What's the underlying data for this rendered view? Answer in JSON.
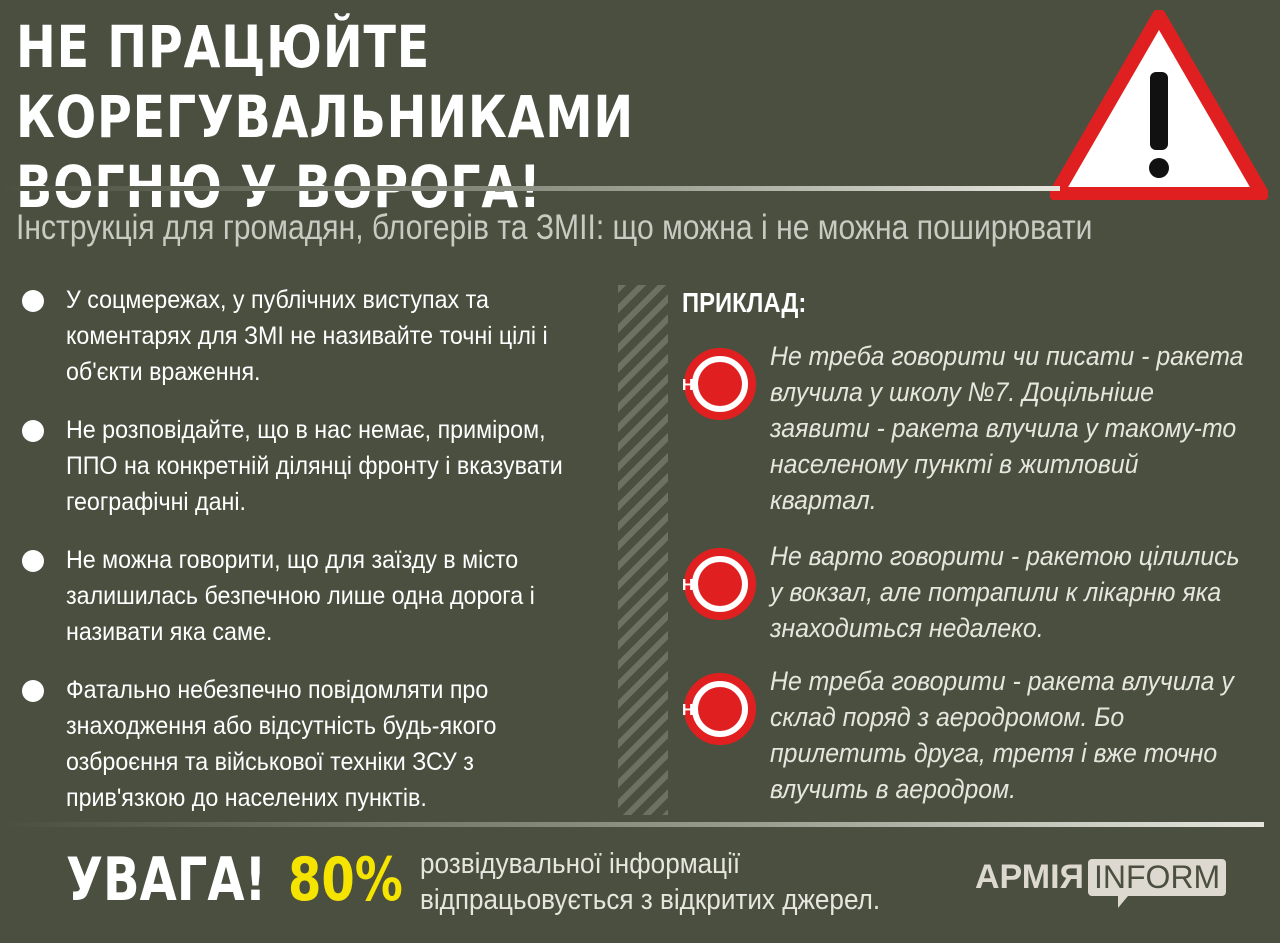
{
  "header": {
    "title_line1": "НЕ ПРАЦЮЙТЕ КОРЕГУВАЛЬНИКАМИ",
    "title_line2": "ВОГНЮ У ВОРОГА!",
    "subtitle": "Інструкція для громадян, блогерів та ЗМІІ: що можна і не можна поширювати",
    "warning_icon": "warning-triangle-icon"
  },
  "bullets": [
    "У соцмережах, у публічних виступах та коментарях для ЗМІ не називайте точні цілі і об'єкти враження.",
    "Не розповідайте, що в нас немає, приміром, ППО на конкретній ділянці фронту і вказувати географічні дані.",
    "Не можна  говорити, що для заїзду в місто залишилась безпечною лише одна дорога і називати яка саме.",
    "Фатально небезпечно повідомляти про знаходження або відсутність будь-якого озброєння та військової техніки ЗСУ з прив'язкою до населених пунктів."
  ],
  "examples": {
    "heading": "ПРИКЛАД:",
    "icon_label": "НІ",
    "items": [
      "Не треба говорити чи писати - ракета влучила у школу №7. Доцільніше заявити - ракета влучила у такому-то населеному пункті в житловий квартал.",
      "Не варто говорити - ракетою цілились у вокзал, але потрапили к лікарню яка знаходиться недалеко.",
      "Не треба говорити - ракета влучила у склад поряд з аеродромом. Бо прилетить друга, третя і вже точно влучить в аеродром."
    ]
  },
  "footer": {
    "attention": "УВАГА!",
    "percent": "80%",
    "note_line1": "розвідувальної інформації",
    "note_line2": "відпрацьовується з відкритих джерел.",
    "logo_part1": "АРМІЯ",
    "logo_part2": "INFORM"
  },
  "colors": {
    "background": "#4a4f3f",
    "accent_yellow": "#f5e400",
    "warning_red": "#e02020"
  }
}
